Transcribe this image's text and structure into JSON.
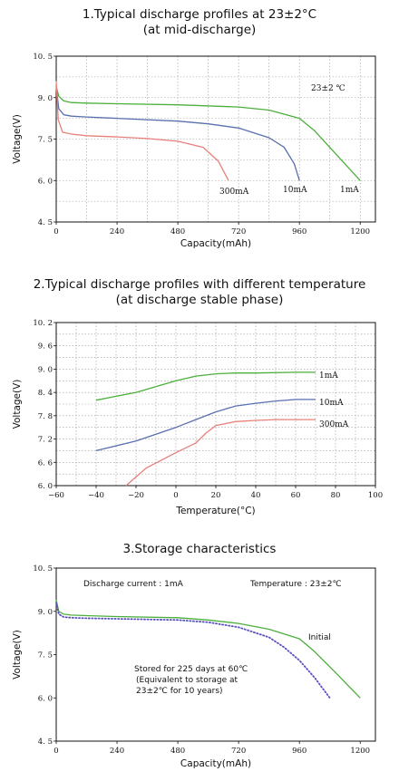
{
  "chart_data": [
    {
      "type": "line",
      "title": "1.Typical discharge profiles at 23±2°C",
      "subtitle": "(at mid-discharge)",
      "xlabel": "Capacity(mAh)",
      "ylabel": "Voltage(V)",
      "xlim": [
        0,
        1260
      ],
      "ylim": [
        4.5,
        10.5
      ],
      "xticks": [
        "0",
        "240",
        "480",
        "720",
        "960",
        "1200"
      ],
      "yticks": [
        "4. 5",
        "6. 0",
        "7. 5",
        "9. 0",
        "10. 5"
      ],
      "grid": true,
      "annotations": [
        "23±2 ℃"
      ],
      "series": [
        {
          "name": "1mA",
          "color": "#4caf3c",
          "x": [
            0,
            10,
            30,
            60,
            120,
            240,
            480,
            720,
            840,
            960,
            1020,
            1100,
            1200
          ],
          "y": [
            9.4,
            9.05,
            8.88,
            8.82,
            8.8,
            8.78,
            8.74,
            8.66,
            8.55,
            8.25,
            7.8,
            7.0,
            6.0
          ]
        },
        {
          "name": "10mA",
          "color": "#5a6fb0",
          "x": [
            0,
            10,
            30,
            60,
            120,
            240,
            480,
            600,
            720,
            840,
            900,
            940,
            960
          ],
          "y": [
            9.4,
            8.6,
            8.38,
            8.33,
            8.3,
            8.25,
            8.15,
            8.05,
            7.9,
            7.55,
            7.2,
            6.6,
            6.0
          ]
        },
        {
          "name": "300mA",
          "color": "#e8807a",
          "x": [
            0,
            8,
            25,
            60,
            120,
            240,
            360,
            480,
            580,
            640,
            680
          ],
          "y": [
            9.6,
            8.2,
            7.75,
            7.68,
            7.62,
            7.58,
            7.52,
            7.42,
            7.2,
            6.7,
            6.0
          ]
        }
      ]
    },
    {
      "type": "line",
      "title": "2.Typical discharge profiles with different temperature",
      "subtitle": "(at discharge stable phase)",
      "xlabel": "Temperature(°C)",
      "ylabel": "Voltage(V)",
      "xlim": [
        -60,
        100
      ],
      "ylim": [
        6.0,
        10.2
      ],
      "xticks": [
        "−60",
        "−40",
        "−20",
        "0",
        "20",
        "40",
        "60",
        "80",
        "100"
      ],
      "yticks": [
        "6. 0",
        "6. 6",
        "7. 2",
        "7. 8",
        "8. 4",
        "9. 0",
        "9. 6",
        "10. 2"
      ],
      "grid": true,
      "series": [
        {
          "name": "1mA",
          "color": "#4caf3c",
          "x": [
            -40,
            -20,
            0,
            10,
            20,
            30,
            40,
            60,
            70
          ],
          "y": [
            8.2,
            8.4,
            8.7,
            8.82,
            8.88,
            8.9,
            8.9,
            8.92,
            8.92
          ]
        },
        {
          "name": "10mA",
          "color": "#5a6fb0",
          "x": [
            -40,
            -20,
            0,
            10,
            20,
            30,
            40,
            50,
            60,
            70
          ],
          "y": [
            6.9,
            7.15,
            7.5,
            7.7,
            7.9,
            8.05,
            8.12,
            8.18,
            8.22,
            8.22
          ]
        },
        {
          "name": "300mA",
          "color": "#e8807a",
          "x": [
            -25,
            -15,
            0,
            10,
            15,
            20,
            30,
            40,
            50,
            60,
            70
          ],
          "y": [
            6.0,
            6.45,
            6.85,
            7.1,
            7.35,
            7.55,
            7.65,
            7.68,
            7.7,
            7.7,
            7.7
          ]
        }
      ]
    },
    {
      "type": "line",
      "title": "3.Storage characteristics",
      "xlabel": "Capacity(mAh)",
      "ylabel": "Voltage(V)",
      "xlim": [
        0,
        1260
      ],
      "ylim": [
        4.5,
        10.5
      ],
      "xticks": [
        "0",
        "240",
        "480",
        "720",
        "960",
        "1200"
      ],
      "yticks": [
        "4. 5",
        "6. 0",
        "7. 5",
        "9. 0",
        "10. 5"
      ],
      "grid": false,
      "annotations": [
        "Discharge current : 1mA",
        "Temperature : 23±2℃",
        "Initial",
        "Stored for 225 days at 60℃",
        "(Equivalent to storage at",
        "23±2℃ for 10 years)"
      ],
      "series": [
        {
          "name": "Initial",
          "color": "#4caf3c",
          "style": "solid",
          "x": [
            0,
            10,
            30,
            60,
            120,
            240,
            480,
            600,
            720,
            840,
            960,
            1020,
            1100,
            1200
          ],
          "y": [
            9.4,
            9.0,
            8.9,
            8.87,
            8.85,
            8.82,
            8.78,
            8.7,
            8.58,
            8.38,
            8.05,
            7.6,
            6.9,
            6.0
          ]
        },
        {
          "name": "Stored for 225 days at 60℃",
          "color": "#5a50c0",
          "style": "dotted",
          "x": [
            0,
            10,
            30,
            60,
            120,
            240,
            480,
            600,
            720,
            840,
            900,
            960,
            1020,
            1080
          ],
          "y": [
            9.3,
            8.9,
            8.8,
            8.78,
            8.76,
            8.74,
            8.7,
            8.62,
            8.45,
            8.1,
            7.75,
            7.3,
            6.7,
            6.0
          ]
        }
      ]
    }
  ]
}
